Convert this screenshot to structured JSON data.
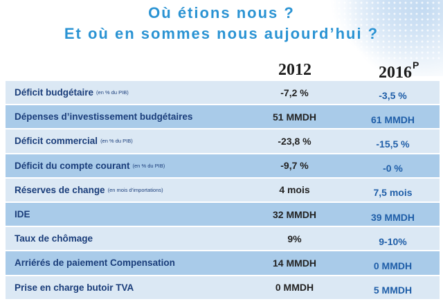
{
  "header": {
    "line1": "Où étions nous ?",
    "line2": "Et où en sommes nous aujourd’hui ?"
  },
  "columns": {
    "col2012": "2012",
    "col2016": "2016",
    "col2016_sup": "P"
  },
  "rows": [
    {
      "label": "Déficit budgétaire",
      "note": "(en % du PIB)",
      "v2012": "-7,2 %",
      "v2016": "-3,5 %"
    },
    {
      "label": "Dépenses d’investissement budgétaires",
      "note": "",
      "v2012": "51 MMDH",
      "v2016": "61 MMDH"
    },
    {
      "label": "Déficit commercial",
      "note": "(en % du PIB)",
      "v2012": "-23,8 %",
      "v2016": "-15,5 %"
    },
    {
      "label": "Déficit du compte courant",
      "note": "(en % du PIB)",
      "v2012": "-9,7 %",
      "v2016": "-0 %"
    },
    {
      "label": "Réserves de change",
      "note": "(en mois d’importations)",
      "v2012": "4 mois",
      "v2016": "7,5 mois"
    },
    {
      "label": "IDE",
      "note": "",
      "v2012": "32 MMDH",
      "v2016": "39 MMDH"
    },
    {
      "label": "Taux de chômage",
      "note": "",
      "v2012": "9%",
      "v2016": "9-10%"
    },
    {
      "label": "Arriérés de paiement Compensation",
      "note": "",
      "v2012": "14 MMDH",
      "v2016": "0 MMDH"
    },
    {
      "label": "Prise en charge butoir TVA",
      "note": "",
      "v2012": "0 MMDH",
      "v2016": "5 MMDH"
    }
  ],
  "colors": {
    "title": "#2a93d3",
    "row_light": "#dbe8f4",
    "row_dark": "#a9cbe9",
    "label": "#1a3d7a",
    "value_2016": "#1f5ea8"
  }
}
